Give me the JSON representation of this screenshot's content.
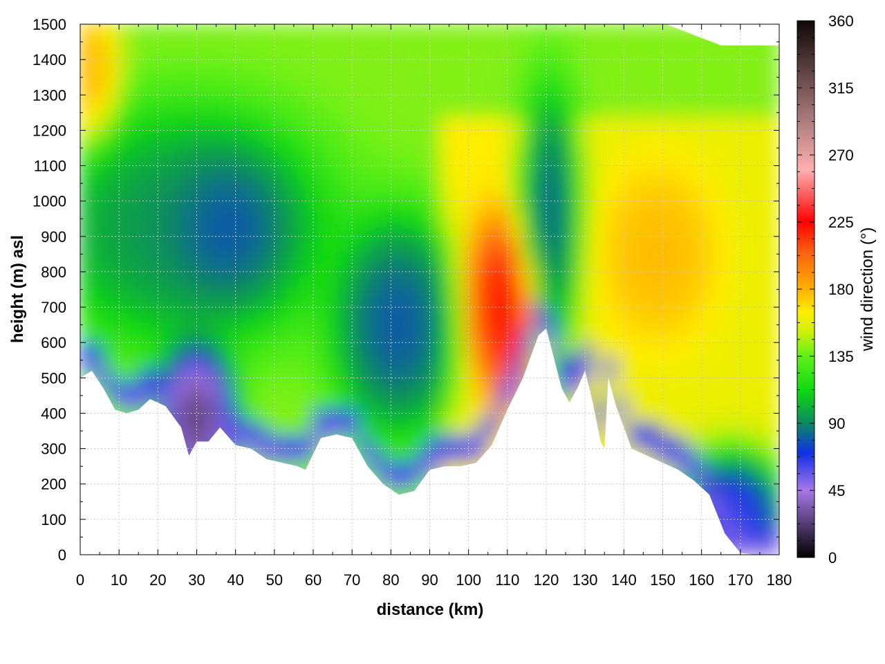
{
  "chart_data": {
    "type": "heatmap",
    "xlabel": "distance (km)",
    "ylabel": "height (m) asl",
    "xlim": [
      0,
      180
    ],
    "ylim": [
      0,
      1500
    ],
    "x_ticks": [
      "0",
      "10",
      "20",
      "30",
      "40",
      "50",
      "60",
      "70",
      "80",
      "90",
      "100",
      "110",
      "120",
      "130",
      "140",
      "150",
      "160",
      "170",
      "180"
    ],
    "y_ticks": [
      "0",
      "100",
      "200",
      "300",
      "400",
      "500",
      "600",
      "700",
      "800",
      "900",
      "1000",
      "1100",
      "1200",
      "1300",
      "1400",
      "1500"
    ],
    "grid": true,
    "colorbar": {
      "label": "wind direction (°)",
      "range": [
        0,
        360
      ],
      "ticks": [
        "0",
        "45",
        "90",
        "135",
        "180",
        "225",
        "270",
        "315",
        "360"
      ]
    },
    "colors": {
      "dir_0": "#000000",
      "dir_45": "#a878e8",
      "dir_70": "#1030e8",
      "dir_90": "#0a8a60",
      "dir_112": "#10d810",
      "dir_135": "#60f018",
      "dir_150": "#c8f008",
      "dir_165": "#ffee00",
      "dir_180": "#ffb000",
      "dir_205": "#ff6010",
      "dir_225": "#ff0000",
      "dir_260": "#ffb0b0",
      "dir_300": "#9a7070",
      "dir_360": "#100808"
    },
    "terrain_height_m": {
      "distance_km": [
        0,
        3,
        6,
        9,
        12,
        15,
        18,
        22,
        26,
        28,
        30,
        33,
        36,
        40,
        44,
        48,
        52,
        56,
        58,
        62,
        66,
        70,
        74,
        78,
        82,
        86,
        90,
        94,
        98,
        102,
        106,
        110,
        114,
        118,
        120,
        124,
        126,
        128,
        130,
        132,
        134,
        135,
        136,
        138,
        142,
        146,
        150,
        154,
        158,
        162,
        166,
        170,
        174,
        177,
        180
      ],
      "height_m": [
        500,
        520,
        470,
        410,
        400,
        410,
        440,
        420,
        360,
        280,
        320,
        320,
        360,
        310,
        300,
        270,
        260,
        250,
        240,
        330,
        340,
        330,
        250,
        200,
        170,
        180,
        240,
        250,
        250,
        260,
        310,
        410,
        500,
        620,
        640,
        470,
        430,
        470,
        520,
        430,
        320,
        300,
        500,
        420,
        300,
        280,
        260,
        240,
        210,
        170,
        60,
        5,
        0,
        0,
        0
      ]
    },
    "regions": [
      {
        "x": [
          0,
          5
        ],
        "y": [
          1250,
          1480
        ],
        "direction": 185
      },
      {
        "x": [
          28,
          48
        ],
        "y": [
          800,
          1050
        ],
        "direction": 65
      },
      {
        "x": [
          0,
          55
        ],
        "y": [
          700,
          1150
        ],
        "direction": 85
      },
      {
        "x": [
          72,
          92
        ],
        "y": [
          450,
          850
        ],
        "direction": 70
      },
      {
        "x": [
          104,
          114
        ],
        "y": [
          550,
          850
        ],
        "direction": 230
      },
      {
        "x": [
          118,
          124
        ],
        "y": [
          700,
          1200
        ],
        "direction": 75
      },
      {
        "x": [
          140,
          158
        ],
        "y": [
          700,
          1000
        ],
        "direction": 180
      },
      {
        "x": [
          26,
          34
        ],
        "y": [
          280,
          500
        ],
        "direction": 5
      },
      {
        "x": [
          160,
          176
        ],
        "y": [
          0,
          200
        ],
        "direction": 45
      }
    ]
  }
}
